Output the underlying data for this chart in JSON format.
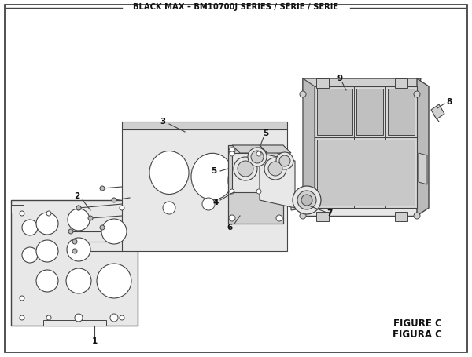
{
  "title": "BLACK MAX – BM10700J SERIES / SÉRIE / SERIE",
  "figure_label1": "FIGURE C",
  "figure_label2": "FIGURA C",
  "bg_color": "#ffffff",
  "border_color": "#333333",
  "line_color": "#444444",
  "text_color": "#111111",
  "dpi": 100,
  "figsize": [
    6.0,
    4.55
  ]
}
